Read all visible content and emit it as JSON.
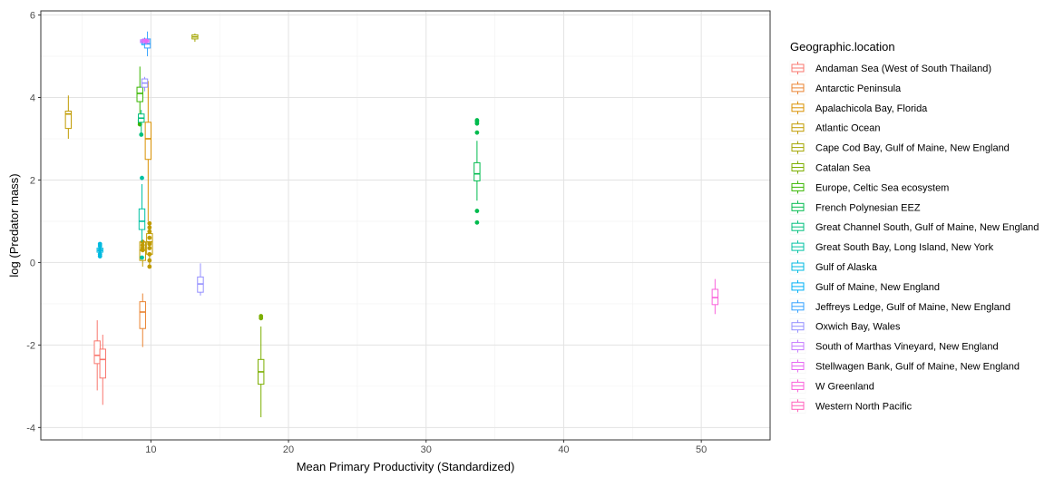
{
  "chart_data": {
    "type": "box",
    "xlabel": "Mean Primary Productivity (Standardized)",
    "ylabel": "log (Predator mass)",
    "xlim": [
      2,
      55
    ],
    "ylim": [
      -4.3,
      6.1
    ],
    "x_ticks": [
      10,
      20,
      30,
      40,
      50
    ],
    "y_ticks": [
      -4,
      -2,
      0,
      2,
      4,
      6
    ],
    "grid": true,
    "legend_title": "Geographic.location",
    "legend_position": "right",
    "series": [
      {
        "name": "Andaman Sea (West of South Thailand)",
        "color": "#F8766D",
        "boxes": [
          {
            "x": 6.1,
            "min": -3.1,
            "q1": -2.45,
            "median": -2.25,
            "q3": -1.9,
            "max": -1.4,
            "outliers": []
          },
          {
            "x": 6.5,
            "min": -3.45,
            "q1": -2.8,
            "median": -2.35,
            "q3": -2.1,
            "max": -1.75,
            "outliers": []
          }
        ]
      },
      {
        "name": "Antarctic Peninsula",
        "color": "#EA8331",
        "boxes": [
          {
            "x": 9.4,
            "min": -2.05,
            "q1": -1.6,
            "median": -1.2,
            "q3": -0.95,
            "max": -0.75,
            "outliers": []
          }
        ]
      },
      {
        "name": "Apalachicola Bay, Florida",
        "color": "#D89000",
        "boxes": [
          {
            "x": 9.8,
            "min": 1.0,
            "q1": 2.5,
            "median": 3.0,
            "q3": 3.4,
            "max": 4.4,
            "outliers": []
          }
        ]
      },
      {
        "name": "Atlantic Ocean",
        "color": "#C09B00",
        "boxes": [
          {
            "x": 4.0,
            "min": 3.0,
            "q1": 3.25,
            "median": 3.6,
            "q3": 3.67,
            "max": 4.05,
            "outliers": []
          },
          {
            "x": 9.4,
            "min": -0.1,
            "q1": 0.05,
            "median": 0.3,
            "q3": 0.5,
            "max": 0.55,
            "outliers": [
              0.3,
              0.35,
              0.42,
              0.5
            ]
          },
          {
            "x": 9.9,
            "min": -0.1,
            "q1": 0.2,
            "median": 0.5,
            "q3": 0.7,
            "max": 0.75,
            "outliers": [
              -0.1,
              0.05,
              0.2,
              0.35,
              0.45,
              0.6,
              0.75,
              0.85,
              0.95
            ]
          }
        ]
      },
      {
        "name": "Cape Cod Bay, Gulf of Maine, New England",
        "color": "#A3A500",
        "boxes": [
          {
            "x": 13.2,
            "min": 5.35,
            "q1": 5.42,
            "median": 5.47,
            "q3": 5.52,
            "max": 5.55,
            "outliers": []
          }
        ]
      },
      {
        "name": "Catalan Sea",
        "color": "#7CAE00",
        "boxes": [
          {
            "x": 18.0,
            "min": -3.75,
            "q1": -2.95,
            "median": -2.65,
            "q3": -2.35,
            "max": -1.55,
            "outliers": [
              -1.3,
              -1.35
            ]
          }
        ]
      },
      {
        "name": "Europe, Celtic Sea ecosystem",
        "color": "#39B600",
        "boxes": [
          {
            "x": 9.2,
            "min": 3.5,
            "q1": 3.9,
            "median": 4.1,
            "q3": 4.25,
            "max": 4.75,
            "outliers": [
              3.35,
              3.4,
              3.45
            ]
          }
        ]
      },
      {
        "name": "French Polynesian EEZ",
        "color": "#00BB4E",
        "boxes": [
          {
            "x": 33.7,
            "min": 1.5,
            "q1": 1.98,
            "median": 2.15,
            "q3": 2.42,
            "max": 2.95,
            "outliers": [
              0.97,
              1.25,
              3.15,
              3.37,
              3.42,
              3.45
            ]
          }
        ]
      },
      {
        "name": "Great Channel South, Gulf of Maine, New England",
        "color": "#00BF7D",
        "boxes": [
          {
            "x": 9.3,
            "min": 3.15,
            "q1": 3.4,
            "median": 3.5,
            "q3": 3.6,
            "max": 3.7,
            "outliers": [
              3.1
            ]
          }
        ]
      },
      {
        "name": "Great South Bay, Long Island, New York",
        "color": "#00C1A3",
        "boxes": [
          {
            "x": 9.35,
            "min": 0.5,
            "q1": 0.8,
            "median": 1.0,
            "q3": 1.3,
            "max": 1.9,
            "outliers": [
              0.12,
              2.05
            ]
          }
        ]
      },
      {
        "name": "Gulf of Alaska",
        "color": "#00BAE0",
        "boxes": [
          {
            "x": 6.3,
            "min": 0.2,
            "q1": 0.25,
            "median": 0.3,
            "q3": 0.35,
            "max": 0.4,
            "outliers": [
              0.15,
              0.2,
              0.3,
              0.4,
              0.45
            ]
          }
        ]
      },
      {
        "name": "Gulf of Maine, New England",
        "color": "#00B0F6",
        "boxes": [
          {
            "x": 9.55,
            "min": 5.2,
            "q1": 5.28,
            "median": 5.32,
            "q3": 5.36,
            "max": 5.45,
            "outliers": []
          }
        ]
      },
      {
        "name": "Jeffreys Ledge, Gulf of Maine, New England",
        "color": "#35A2FF",
        "boxes": [
          {
            "x": 9.75,
            "min": 5.0,
            "q1": 5.2,
            "median": 5.3,
            "q3": 5.42,
            "max": 5.6,
            "outliers": []
          }
        ]
      },
      {
        "name": "Oxwich Bay, Wales",
        "color": "#9590FF",
        "boxes": [
          {
            "x": 13.6,
            "min": -0.8,
            "q1": -0.72,
            "median": -0.52,
            "q3": -0.35,
            "max": -0.02,
            "outliers": []
          },
          {
            "x": 9.55,
            "min": 4.15,
            "q1": 4.25,
            "median": 4.35,
            "q3": 4.45,
            "max": 4.5,
            "outliers": []
          }
        ]
      },
      {
        "name": "South of Marthas Vineyard, New England",
        "color": "#C77CFF",
        "boxes": [
          {
            "x": 9.45,
            "min": 5.3,
            "q1": 5.33,
            "median": 5.36,
            "q3": 5.4,
            "max": 5.43,
            "outliers": [
              5.38
            ]
          }
        ]
      },
      {
        "name": "Stellwagen Bank, Gulf of Maine, New England",
        "color": "#E76BF3",
        "boxes": [
          {
            "x": 9.65,
            "min": 5.28,
            "q1": 5.33,
            "median": 5.37,
            "q3": 5.4,
            "max": 5.42,
            "outliers": [
              5.38
            ]
          }
        ]
      },
      {
        "name": "W Greenland",
        "color": "#FA62DB",
        "boxes": [
          {
            "x": 51.0,
            "min": -1.25,
            "q1": -1.02,
            "median": -0.85,
            "q3": -0.65,
            "max": -0.4,
            "outliers": []
          }
        ]
      },
      {
        "name": "Western North Pacific",
        "color": "#FF62BC",
        "boxes": []
      }
    ]
  }
}
